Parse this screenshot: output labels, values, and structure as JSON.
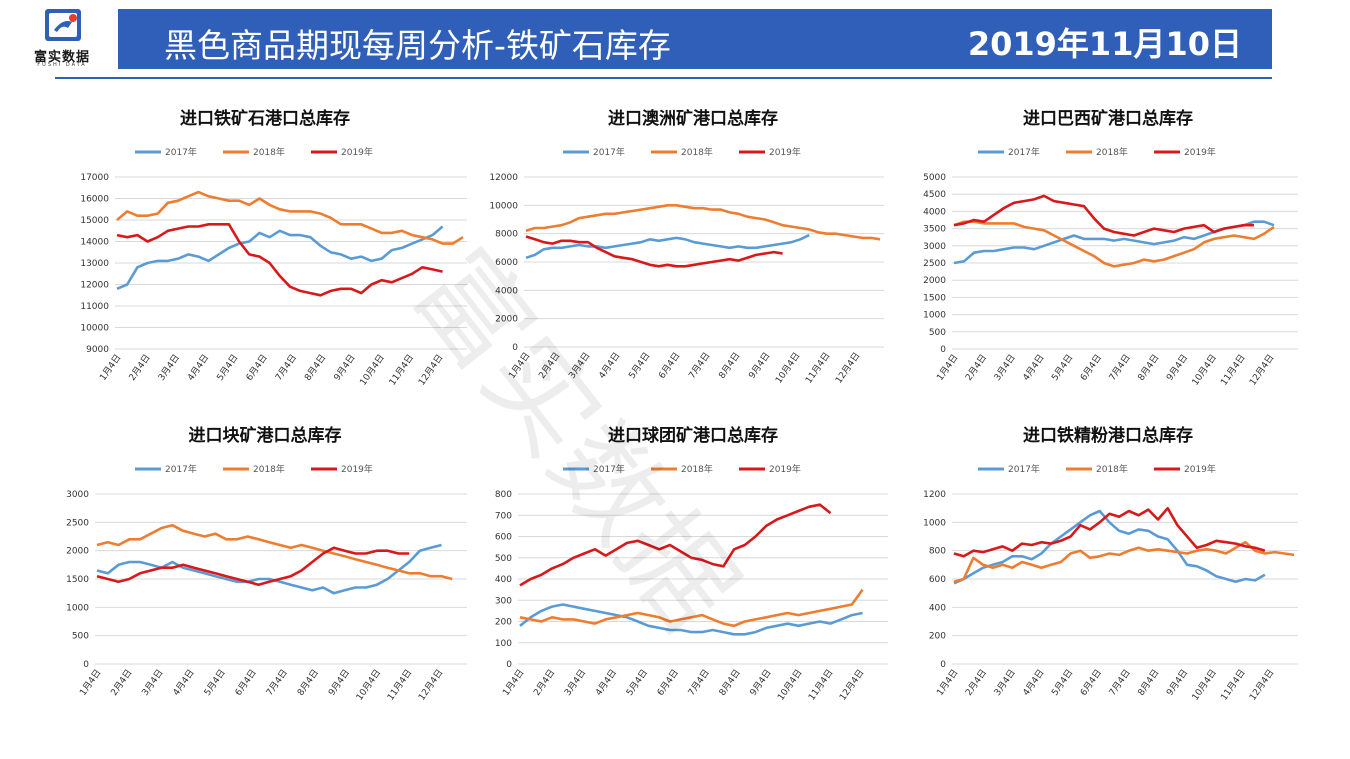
{
  "header": {
    "logo_text": "富实数据",
    "logo_sub": "FUSHI DATA",
    "title": "黑色商品期现每周分析-铁矿石库存",
    "date": "2019年11月10日"
  },
  "watermark": "富实数据",
  "colors": {
    "banner": "#2f5fb8",
    "s2017": "#5b9bd5",
    "s2018": "#ed7d31",
    "s2019": "#d7191c"
  },
  "chart_data": [
    {
      "type": "line",
      "title": "进口铁矿石港口总库存",
      "legend": [
        "2017年",
        "2018年",
        "2019年"
      ],
      "ylim": [
        9000,
        17000
      ],
      "yticks": [
        9000,
        10000,
        11000,
        12000,
        13000,
        14000,
        15000,
        16000,
        17000
      ],
      "xticks": [
        "1月4日",
        "2月4日",
        "3月4日",
        "4月4日",
        "5月4日",
        "6月4日",
        "7月4日",
        "8月4日",
        "9月4日",
        "10月4日",
        "11月4日",
        "12月4日"
      ],
      "series": [
        {
          "name": "2017年",
          "values": [
            11800,
            12000,
            12800,
            13000,
            13100,
            13100,
            13200,
            13400,
            13300,
            13100,
            13400,
            13700,
            13900,
            14000,
            14400,
            14200,
            14500,
            14300,
            14300,
            14200,
            13800,
            13500,
            13400,
            13200,
            13300,
            13100,
            13200,
            13600,
            13700,
            13900,
            14100,
            14300,
            14700
          ]
        },
        {
          "name": "2018年",
          "values": [
            15000,
            15400,
            15200,
            15200,
            15300,
            15800,
            15900,
            16100,
            16300,
            16100,
            16000,
            15900,
            15900,
            15700,
            16000,
            15700,
            15500,
            15400,
            15400,
            15400,
            15300,
            15100,
            14800,
            14800,
            14800,
            14600,
            14400,
            14400,
            14500,
            14300,
            14200,
            14100,
            13900,
            13900,
            14200
          ]
        },
        {
          "name": "2019年",
          "values": [
            14300,
            14200,
            14300,
            14000,
            14200,
            14500,
            14600,
            14700,
            14700,
            14800,
            14800,
            14800,
            14000,
            13400,
            13300,
            13000,
            12400,
            11900,
            11700,
            11600,
            11500,
            11700,
            11800,
            11800,
            11600,
            12000,
            12200,
            12100,
            12300,
            12500,
            12800,
            12700,
            12600
          ]
        }
      ]
    },
    {
      "type": "line",
      "title": "进口澳洲矿港口总库存",
      "legend": [
        "2017年",
        "2018年",
        "2019年"
      ],
      "ylim": [
        0,
        12000
      ],
      "yticks": [
        0,
        2000,
        4000,
        6000,
        8000,
        10000,
        12000
      ],
      "xticks": [
        "1月4日",
        "2月4日",
        "3月4日",
        "4月4日",
        "5月4日",
        "6月4日",
        "7月4日",
        "8月4日",
        "9月4日",
        "10月4日",
        "11月4日",
        "12月4日"
      ],
      "series": [
        {
          "name": "2017年",
          "values": [
            6300,
            6500,
            6900,
            7000,
            7000,
            7100,
            7200,
            7100,
            7100,
            7000,
            7100,
            7200,
            7300,
            7400,
            7600,
            7500,
            7600,
            7700,
            7600,
            7400,
            7300,
            7200,
            7100,
            7000,
            7100,
            7000,
            7000,
            7100,
            7200,
            7300,
            7400,
            7600,
            7900
          ]
        },
        {
          "name": "2018年",
          "values": [
            8200,
            8400,
            8400,
            8500,
            8600,
            8800,
            9100,
            9200,
            9300,
            9400,
            9400,
            9500,
            9600,
            9700,
            9800,
            9900,
            10000,
            10000,
            9900,
            9800,
            9800,
            9700,
            9700,
            9500,
            9400,
            9200,
            9100,
            9000,
            8800,
            8600,
            8500,
            8400,
            8300,
            8100,
            8000,
            8000,
            7900,
            7800,
            7700,
            7700,
            7600
          ]
        },
        {
          "name": "2019年",
          "values": [
            7800,
            7600,
            7400,
            7300,
            7500,
            7500,
            7400,
            7400,
            7000,
            6700,
            6400,
            6300,
            6200,
            6000,
            5800,
            5700,
            5800,
            5700,
            5700,
            5800,
            5900,
            6000,
            6100,
            6200,
            6100,
            6300,
            6500,
            6600,
            6700,
            6600
          ]
        }
      ]
    },
    {
      "type": "line",
      "title": "进口巴西矿港口总库存",
      "legend": [
        "2017年",
        "2018年",
        "2019年"
      ],
      "ylim": [
        0,
        5000
      ],
      "yticks": [
        0,
        500,
        1000,
        1500,
        2000,
        2500,
        3000,
        3500,
        4000,
        4500,
        5000
      ],
      "xticks": [
        "1月4日",
        "2月4日",
        "3月4日",
        "4月4日",
        "5月4日",
        "6月4日",
        "7月4日",
        "8月4日",
        "9月4日",
        "10月4日",
        "11月4日",
        "12月4日"
      ],
      "series": [
        {
          "name": "2017年",
          "values": [
            2500,
            2550,
            2800,
            2850,
            2850,
            2900,
            2950,
            2950,
            2900,
            3000,
            3100,
            3200,
            3300,
            3200,
            3200,
            3200,
            3150,
            3200,
            3150,
            3100,
            3050,
            3100,
            3150,
            3250,
            3200,
            3300,
            3400,
            3500,
            3550,
            3600,
            3700,
            3700,
            3600
          ]
        },
        {
          "name": "2018年",
          "values": [
            3600,
            3700,
            3700,
            3650,
            3650,
            3650,
            3650,
            3550,
            3500,
            3450,
            3300,
            3150,
            3000,
            2850,
            2700,
            2500,
            2400,
            2450,
            2500,
            2600,
            2550,
            2600,
            2700,
            2800,
            2900,
            3100,
            3200,
            3250,
            3300,
            3250,
            3200,
            3350,
            3550
          ]
        },
        {
          "name": "2019年",
          "values": [
            3600,
            3650,
            3750,
            3700,
            3900,
            4100,
            4250,
            4300,
            4350,
            4450,
            4300,
            4250,
            4200,
            4150,
            3800,
            3500,
            3400,
            3350,
            3300,
            3400,
            3500,
            3450,
            3400,
            3500,
            3550,
            3600,
            3400,
            3500,
            3550,
            3600,
            3600
          ]
        }
      ]
    },
    {
      "type": "line",
      "title": "进口块矿港口总库存",
      "legend": [
        "2017年",
        "2018年",
        "2019年"
      ],
      "ylim": [
        0,
        3000
      ],
      "yticks": [
        0,
        500,
        1000,
        1500,
        2000,
        2500,
        3000
      ],
      "xticks": [
        "1月4日",
        "2月4日",
        "3月4日",
        "4月4日",
        "5月4日",
        "6月4日",
        "7月4日",
        "8月4日",
        "9月4日",
        "10月4日",
        "11月4日",
        "12月4日"
      ],
      "series": [
        {
          "name": "2017年",
          "values": [
            1650,
            1600,
            1750,
            1800,
            1800,
            1750,
            1700,
            1800,
            1700,
            1650,
            1600,
            1550,
            1500,
            1450,
            1450,
            1500,
            1500,
            1450,
            1400,
            1350,
            1300,
            1350,
            1250,
            1300,
            1350,
            1350,
            1400,
            1500,
            1650,
            1800,
            2000,
            2050,
            2100
          ]
        },
        {
          "name": "2018年",
          "values": [
            2100,
            2150,
            2100,
            2200,
            2200,
            2300,
            2400,
            2450,
            2350,
            2300,
            2250,
            2300,
            2200,
            2200,
            2250,
            2200,
            2150,
            2100,
            2050,
            2100,
            2050,
            2000,
            1950,
            1900,
            1850,
            1800,
            1750,
            1700,
            1650,
            1600,
            1600,
            1550,
            1550,
            1500
          ]
        },
        {
          "name": "2019年",
          "values": [
            1550,
            1500,
            1450,
            1500,
            1600,
            1650,
            1700,
            1700,
            1750,
            1700,
            1650,
            1600,
            1550,
            1500,
            1450,
            1400,
            1450,
            1500,
            1550,
            1650,
            1800,
            1950,
            2050,
            2000,
            1950,
            1950,
            2000,
            2000,
            1950,
            1950
          ]
        }
      ]
    },
    {
      "type": "line",
      "title": "进口球团矿港口总库存",
      "legend": [
        "2017年",
        "2018年",
        "2019年"
      ],
      "ylim": [
        0,
        800
      ],
      "yticks": [
        0,
        100,
        200,
        300,
        400,
        500,
        600,
        700,
        800
      ],
      "xticks": [
        "1月4日",
        "2月4日",
        "3月4日",
        "4月4日",
        "5月4日",
        "6月4日",
        "7月4日",
        "8月4日",
        "9月4日",
        "10月4日",
        "11月4日",
        "12月4日"
      ],
      "series": [
        {
          "name": "2017年",
          "values": [
            180,
            220,
            250,
            270,
            280,
            270,
            260,
            250,
            240,
            230,
            220,
            200,
            180,
            170,
            160,
            160,
            150,
            150,
            160,
            150,
            140,
            140,
            150,
            170,
            180,
            190,
            180,
            190,
            200,
            190,
            210,
            230,
            240
          ]
        },
        {
          "name": "2018年",
          "values": [
            220,
            210,
            200,
            220,
            210,
            210,
            200,
            190,
            210,
            220,
            230,
            240,
            230,
            220,
            200,
            210,
            220,
            230,
            210,
            190,
            180,
            200,
            210,
            220,
            230,
            240,
            230,
            240,
            250,
            260,
            270,
            280,
            350
          ]
        },
        {
          "name": "2019年",
          "values": [
            370,
            400,
            420,
            450,
            470,
            500,
            520,
            540,
            510,
            540,
            570,
            580,
            560,
            540,
            560,
            530,
            500,
            490,
            470,
            460,
            540,
            560,
            600,
            650,
            680,
            700,
            720,
            740,
            750,
            710
          ]
        }
      ]
    },
    {
      "type": "line",
      "title": "进口铁精粉港口总库存",
      "legend": [
        "2017年",
        "2018年",
        "2019年"
      ],
      "ylim": [
        0,
        1200
      ],
      "yticks": [
        0,
        200,
        400,
        600,
        800,
        1000,
        1200
      ],
      "xticks": [
        "1月4日",
        "2月4日",
        "3月4日",
        "4月4日",
        "5月4日",
        "6月4日",
        "7月4日",
        "8月4日",
        "9月4日",
        "10月4日",
        "11月4日",
        "12月4日"
      ],
      "series": [
        {
          "name": "2017年",
          "values": [
            570,
            600,
            640,
            680,
            700,
            720,
            760,
            760,
            740,
            780,
            850,
            900,
            950,
            1000,
            1050,
            1080,
            1000,
            940,
            920,
            950,
            940,
            900,
            880,
            800,
            700,
            690,
            660,
            620,
            600,
            580,
            600,
            590,
            630
          ]
        },
        {
          "name": "2018年",
          "values": [
            580,
            600,
            750,
            700,
            680,
            700,
            680,
            720,
            700,
            680,
            700,
            720,
            780,
            800,
            750,
            760,
            780,
            770,
            800,
            820,
            800,
            810,
            800,
            790,
            780,
            800,
            810,
            800,
            780,
            820,
            860,
            800,
            780,
            790,
            780,
            770
          ]
        },
        {
          "name": "2019年",
          "values": [
            780,
            760,
            800,
            790,
            810,
            830,
            800,
            850,
            840,
            860,
            850,
            870,
            900,
            980,
            950,
            1000,
            1060,
            1040,
            1080,
            1050,
            1090,
            1020,
            1100,
            980,
            900,
            820,
            840,
            870,
            860,
            850,
            830,
            820,
            800
          ]
        }
      ]
    }
  ]
}
